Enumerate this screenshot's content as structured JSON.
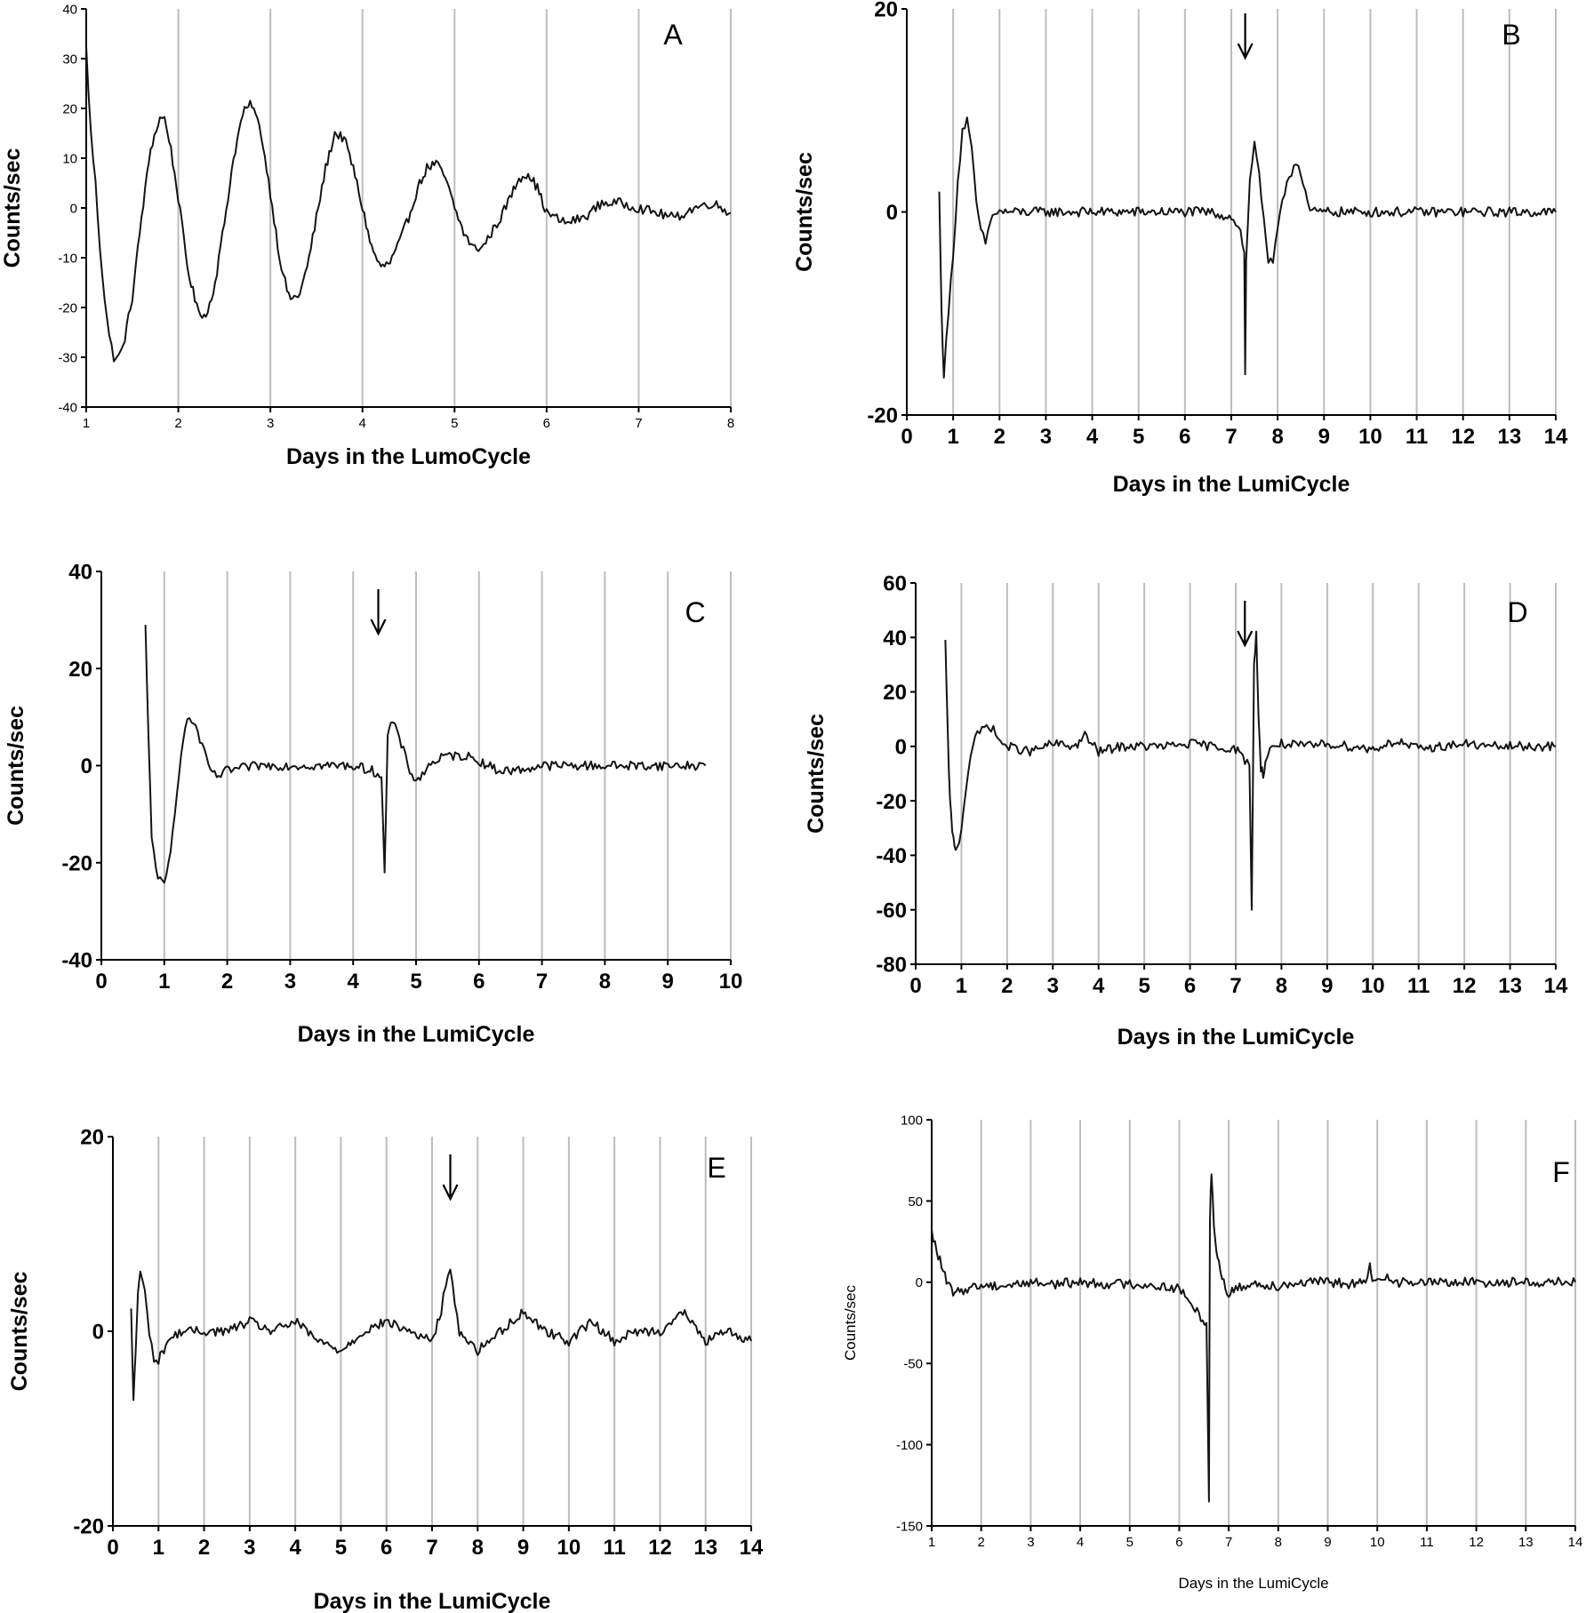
{
  "chart_data": [
    {
      "panel": "A",
      "type": "line",
      "xlabel": "Days in the LumoCycle",
      "ylabel": "Counts/sec",
      "xlim": [
        1,
        8
      ],
      "ylim": [
        -40,
        40
      ],
      "xticks": [
        1,
        2,
        3,
        4,
        5,
        6,
        7,
        8
      ],
      "yticks": [
        -40,
        -30,
        -20,
        -10,
        0,
        10,
        20,
        30,
        40
      ],
      "grid": "vertical",
      "arrow_day": null,
      "series": [
        {
          "x": [
            1.0,
            1.05,
            1.1,
            1.15,
            1.2,
            1.25,
            1.3,
            1.35,
            1.4,
            1.5,
            1.6,
            1.7,
            1.8,
            1.85,
            1.9,
            2.0,
            2.1,
            2.2,
            2.3,
            2.4,
            2.5,
            2.6,
            2.7,
            2.8,
            2.9,
            3.0,
            3.1,
            3.2,
            3.3,
            3.4,
            3.5,
            3.6,
            3.7,
            3.8,
            3.9,
            4.0,
            4.1,
            4.2,
            4.3,
            4.4,
            4.5,
            4.6,
            4.7,
            4.8,
            4.9,
            5.0,
            5.1,
            5.2,
            5.3,
            5.4,
            5.5,
            5.6,
            5.7,
            5.8,
            5.9,
            6.0,
            6.2,
            6.4,
            6.6,
            6.8,
            7.0,
            7.2,
            7.4,
            7.6,
            7.8,
            8.0
          ],
          "y": [
            32,
            15,
            5,
            -8,
            -18,
            -26,
            -30,
            -30,
            -28,
            -18,
            -2,
            12,
            18,
            18,
            14,
            2,
            -12,
            -20,
            -22,
            -15,
            -3,
            10,
            19,
            21,
            15,
            3,
            -10,
            -18,
            -18,
            -12,
            -2,
            8,
            15,
            14,
            8,
            0,
            -8,
            -12,
            -11,
            -7,
            -2,
            4,
            8,
            9,
            6,
            0,
            -5,
            -8,
            -8,
            -5,
            -2,
            2,
            6,
            7,
            4,
            -1,
            -3,
            -2,
            1,
            1,
            0,
            -1,
            -2,
            0,
            1,
            -1
          ]
        }
      ]
    },
    {
      "panel": "B",
      "type": "line",
      "xlabel": "Days in the LumiCycle",
      "ylabel": "Counts/sec",
      "xlim": [
        0,
        14
      ],
      "ylim": [
        -20,
        20
      ],
      "xticks": [
        0,
        1,
        2,
        3,
        4,
        5,
        6,
        7,
        8,
        9,
        10,
        11,
        12,
        13,
        14
      ],
      "yticks": [
        -20,
        0,
        20
      ],
      "grid": "vertical",
      "arrow_day": 7.3,
      "series": [
        {
          "x": [
            0.7,
            0.75,
            0.8,
            0.9,
            1.0,
            1.1,
            1.2,
            1.3,
            1.4,
            1.5,
            1.6,
            1.7,
            1.8,
            1.9,
            2.0,
            2.5,
            3.0,
            3.5,
            4.0,
            4.5,
            5.0,
            5.5,
            6.0,
            6.5,
            7.0,
            7.1,
            7.2,
            7.28,
            7.3,
            7.32,
            7.4,
            7.5,
            7.6,
            7.7,
            7.8,
            7.9,
            8.0,
            8.1,
            8.2,
            8.3,
            8.4,
            8.5,
            8.6,
            8.7,
            8.8,
            9.0,
            9.5,
            10.0,
            10.5,
            11.0,
            11.5,
            12.0,
            12.5,
            13.0,
            13.5,
            14.0
          ],
          "y": [
            2,
            -10,
            -16,
            -10,
            -4,
            3,
            8,
            9,
            6,
            1,
            -2,
            -3,
            -1,
            0,
            0,
            0,
            0,
            0,
            0,
            0,
            0,
            0,
            0,
            0,
            -0.5,
            -1,
            -2,
            -4,
            -16,
            -5,
            3,
            7,
            4,
            -1,
            -5,
            -5,
            -2,
            1,
            3,
            4,
            5,
            4,
            2,
            0,
            0,
            0,
            0,
            0,
            0,
            0,
            0,
            0,
            0,
            0,
            0,
            0
          ]
        }
      ]
    },
    {
      "panel": "C",
      "type": "line",
      "xlabel": "Days in the LumiCycle",
      "ylabel": "Counts/sec",
      "xlim": [
        0,
        10
      ],
      "ylim": [
        -40,
        40
      ],
      "xticks": [
        0,
        1,
        2,
        3,
        4,
        5,
        6,
        7,
        8,
        9,
        10
      ],
      "yticks": [
        -40,
        -20,
        0,
        20,
        40
      ],
      "grid": "vertical",
      "arrow_day": 4.4,
      "series": [
        {
          "x": [
            0.7,
            0.75,
            0.8,
            0.9,
            1.0,
            1.1,
            1.2,
            1.3,
            1.4,
            1.5,
            1.6,
            1.7,
            1.8,
            1.9,
            2.0,
            2.5,
            3.0,
            3.5,
            4.0,
            4.3,
            4.45,
            4.5,
            4.55,
            4.6,
            4.7,
            4.8,
            4.9,
            5.0,
            5.1,
            5.2,
            5.3,
            5.5,
            5.8,
            6.0,
            6.3,
            6.6,
            7.0,
            7.5,
            8.0,
            8.5,
            9.0,
            9.5,
            9.6
          ],
          "y": [
            29,
            5,
            -15,
            -23,
            -25,
            -18,
            -5,
            6,
            10,
            8,
            4,
            0,
            -2,
            -2,
            -1,
            0,
            0,
            0,
            0,
            -1,
            -2,
            -22,
            6,
            9,
            7,
            3,
            -1,
            -3,
            -2,
            0,
            1,
            2,
            2,
            1,
            -1,
            -1,
            0,
            0,
            0,
            0,
            0,
            0,
            0
          ]
        }
      ]
    },
    {
      "panel": "D",
      "type": "line",
      "xlabel": "Days in the LumiCycle",
      "ylabel": "Counts/sec",
      "xlim": [
        0,
        14
      ],
      "ylim": [
        -80,
        60
      ],
      "xticks": [
        0,
        1,
        2,
        3,
        4,
        5,
        6,
        7,
        8,
        9,
        10,
        11,
        12,
        13,
        14
      ],
      "yticks": [
        -80,
        -60,
        -40,
        -20,
        0,
        20,
        40,
        60
      ],
      "grid": "vertical",
      "arrow_day": 7.2,
      "series": [
        {
          "x": [
            0.65,
            0.7,
            0.75,
            0.8,
            0.85,
            0.9,
            1.0,
            1.1,
            1.2,
            1.3,
            1.4,
            1.5,
            1.6,
            1.7,
            1.8,
            1.9,
            2.0,
            2.5,
            3.0,
            3.5,
            3.7,
            4.0,
            4.5,
            5.0,
            5.5,
            6.0,
            6.5,
            7.0,
            7.2,
            7.3,
            7.35,
            7.4,
            7.45,
            7.5,
            7.55,
            7.6,
            7.65,
            7.7,
            7.8,
            8.0,
            8.5,
            9.0,
            9.5,
            10.0,
            10.5,
            11.0,
            11.5,
            12.0,
            12.5,
            13.0,
            13.5,
            14.0
          ],
          "y": [
            38,
            5,
            -20,
            -32,
            -36,
            -38,
            -30,
            -15,
            -3,
            3,
            5,
            7,
            8,
            6,
            3,
            1,
            0,
            -2,
            1,
            0,
            4,
            -2,
            0,
            0,
            0,
            1,
            0,
            -1,
            -5,
            -7,
            -60,
            30,
            42,
            10,
            -8,
            -10,
            -6,
            -3,
            0,
            1,
            0,
            1,
            0,
            -1,
            2,
            -1,
            0,
            1,
            0,
            0,
            0,
            0
          ]
        }
      ]
    },
    {
      "panel": "E",
      "type": "line",
      "xlabel": "Days in the LumiCycle",
      "ylabel": "Counts/sec",
      "xlim": [
        0,
        14
      ],
      "ylim": [
        -20,
        20
      ],
      "xticks": [
        0,
        1,
        2,
        3,
        4,
        5,
        6,
        7,
        8,
        9,
        10,
        11,
        12,
        13,
        14
      ],
      "yticks": [
        -20,
        0,
        20
      ],
      "grid": "vertical",
      "arrow_day": 7.4,
      "series": [
        {
          "x": [
            0.4,
            0.45,
            0.5,
            0.55,
            0.6,
            0.7,
            0.8,
            0.9,
            1.0,
            1.2,
            1.5,
            2.0,
            2.5,
            3.0,
            3.5,
            4.0,
            4.5,
            5.0,
            5.5,
            6.0,
            6.5,
            7.0,
            7.2,
            7.3,
            7.4,
            7.5,
            7.6,
            7.8,
            8.0,
            8.5,
            9.0,
            9.5,
            10.0,
            10.5,
            11.0,
            11.5,
            12.0,
            12.5,
            13.0,
            13.5,
            14.0
          ],
          "y": [
            2,
            -7,
            -2,
            4,
            6,
            4,
            0,
            -3,
            -3,
            -1,
            0,
            0,
            0,
            1,
            0,
            1,
            -1,
            -2,
            0,
            1,
            0,
            -1,
            2,
            5,
            6,
            3,
            0,
            -1,
            -2,
            0,
            2,
            0,
            -1,
            1,
            -1,
            0,
            0,
            2,
            -1,
            0,
            -1
          ]
        }
      ]
    },
    {
      "panel": "F",
      "type": "line",
      "xlabel": "Days in the LumiCycle",
      "ylabel": "Counts/sec",
      "xlim": [
        1,
        14
      ],
      "ylim": [
        -150,
        100
      ],
      "xticks": [
        1,
        2,
        3,
        4,
        5,
        6,
        7,
        8,
        9,
        10,
        11,
        12,
        13,
        14
      ],
      "yticks": [
        -150,
        -100,
        -50,
        0,
        50,
        100
      ],
      "grid": "vertical",
      "arrow_day": null,
      "series": [
        {
          "x": [
            1.0,
            1.1,
            1.2,
            1.3,
            1.4,
            1.5,
            1.6,
            1.8,
            2.0,
            2.5,
            3.0,
            3.5,
            4.0,
            4.5,
            5.0,
            5.5,
            6.0,
            6.2,
            6.4,
            6.55,
            6.6,
            6.62,
            6.65,
            6.7,
            6.75,
            6.8,
            6.9,
            7.0,
            7.1,
            7.3,
            7.5,
            8.0,
            8.5,
            9.0,
            9.5,
            9.8,
            9.85,
            9.9,
            10.0,
            10.2,
            10.4,
            10.6,
            11.0,
            11.5,
            12.0,
            12.5,
            13.0,
            13.5,
            14.0
          ],
          "y": [
            30,
            20,
            10,
            0,
            -5,
            -7,
            -5,
            -3,
            -2,
            -2,
            0,
            -1,
            0,
            -1,
            -1,
            -2,
            -4,
            -12,
            -20,
            -25,
            -135,
            40,
            68,
            35,
            20,
            12,
            0,
            -8,
            -5,
            -2,
            -1,
            -2,
            0,
            0,
            -1,
            0,
            12,
            0,
            0,
            5,
            0,
            0,
            0,
            0,
            0,
            0,
            0,
            0,
            0
          ]
        }
      ]
    }
  ]
}
